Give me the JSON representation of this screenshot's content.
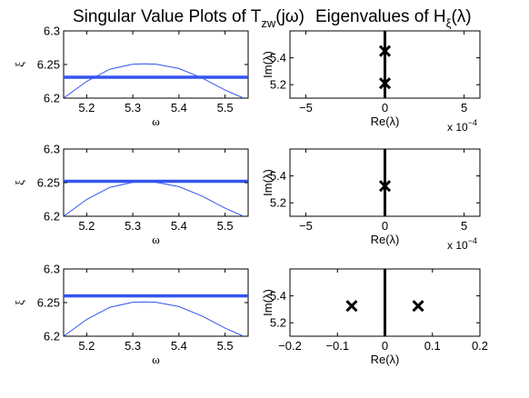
{
  "titles": {
    "left": {
      "main": "Singular Value Plots of T",
      "sub": "zw",
      "tail": "(jω)"
    },
    "right": {
      "main": "Eigenvalues of H",
      "sub": "ξ",
      "tail": "(λ)"
    }
  },
  "colors": {
    "curve": "#3355ee",
    "level": "#3355ee",
    "axis_line": "#000000",
    "marker": "#000000"
  },
  "chart_data": [
    {
      "type": "line",
      "panel": "singular-value-1",
      "xlabel": "ω",
      "ylabel": "ξ",
      "xlim": [
        5.15,
        5.55
      ],
      "ylim": [
        6.2,
        6.3
      ],
      "xticks": [
        5.2,
        5.3,
        5.4,
        5.5
      ],
      "xtick_labels": [
        "5.2",
        "5.3",
        "5.4",
        "5.5"
      ],
      "yticks": [
        6.2,
        6.25,
        6.3
      ],
      "ytick_labels": [
        "6.2",
        "6.25",
        "6.3"
      ],
      "curve": {
        "x": [
          5.15,
          5.2,
          5.25,
          5.3,
          5.325,
          5.35,
          5.4,
          5.45,
          5.5,
          5.54
        ],
        "y": [
          6.2,
          6.225,
          6.243,
          6.2505,
          6.251,
          6.2505,
          6.244,
          6.23,
          6.212,
          6.2
        ]
      },
      "level": 6.231
    },
    {
      "type": "scatter",
      "panel": "eigenvalues-1",
      "xlabel": "Re(λ)",
      "ylabel": "Im(λ)",
      "xlim": [
        -6,
        6
      ],
      "ylim": [
        5.1,
        5.6
      ],
      "xticks": [
        -5,
        0,
        5
      ],
      "xtick_labels": [
        "−5",
        "0",
        "5"
      ],
      "yticks": [
        5.2,
        5.4
      ],
      "ytick_labels": [
        "5.2",
        "5.4"
      ],
      "exponent": {
        "base": "x 10",
        "power": "−4"
      },
      "points": [
        {
          "x": 0,
          "y": 5.45
        },
        {
          "x": 0,
          "y": 5.21
        }
      ]
    },
    {
      "type": "line",
      "panel": "singular-value-2",
      "xlabel": "ω",
      "ylabel": "ξ",
      "xlim": [
        5.15,
        5.55
      ],
      "ylim": [
        6.2,
        6.3
      ],
      "xticks": [
        5.2,
        5.3,
        5.4,
        5.5
      ],
      "xtick_labels": [
        "5.2",
        "5.3",
        "5.4",
        "5.5"
      ],
      "yticks": [
        6.2,
        6.25,
        6.3
      ],
      "ytick_labels": [
        "6.2",
        "6.25",
        "6.3"
      ],
      "curve": {
        "x": [
          5.15,
          5.2,
          5.25,
          5.3,
          5.325,
          5.35,
          5.4,
          5.45,
          5.5,
          5.54
        ],
        "y": [
          6.2,
          6.225,
          6.243,
          6.2505,
          6.251,
          6.2505,
          6.244,
          6.23,
          6.212,
          6.2
        ]
      },
      "level": 6.252
    },
    {
      "type": "scatter",
      "panel": "eigenvalues-2",
      "xlabel": "Re(λ)",
      "ylabel": "Im(λ)",
      "xlim": [
        -6,
        6
      ],
      "ylim": [
        5.1,
        5.6
      ],
      "xticks": [
        -5,
        0,
        5
      ],
      "xtick_labels": [
        "−5",
        "0",
        "5"
      ],
      "yticks": [
        5.2,
        5.4
      ],
      "ytick_labels": [
        "5.2",
        "5.4"
      ],
      "exponent": {
        "base": "x 10",
        "power": "−4"
      },
      "points": [
        {
          "x": 0,
          "y": 5.325
        }
      ]
    },
    {
      "type": "line",
      "panel": "singular-value-3",
      "xlabel": "ω",
      "ylabel": "ξ",
      "xlim": [
        5.15,
        5.55
      ],
      "ylim": [
        6.2,
        6.3
      ],
      "xticks": [
        5.2,
        5.3,
        5.4,
        5.5
      ],
      "xtick_labels": [
        "5.2",
        "5.3",
        "5.4",
        "5.5"
      ],
      "yticks": [
        6.2,
        6.25,
        6.3
      ],
      "ytick_labels": [
        "6.2",
        "6.25",
        "6.3"
      ],
      "curve": {
        "x": [
          5.15,
          5.2,
          5.25,
          5.3,
          5.325,
          5.35,
          5.4,
          5.45,
          5.5,
          5.54
        ],
        "y": [
          6.2,
          6.225,
          6.243,
          6.2505,
          6.251,
          6.2505,
          6.244,
          6.23,
          6.212,
          6.2
        ]
      },
      "level": 6.26
    },
    {
      "type": "scatter",
      "panel": "eigenvalues-3",
      "xlabel": "Re(λ)",
      "ylabel": "Im(λ)",
      "xlim": [
        -0.2,
        0.2
      ],
      "ylim": [
        5.1,
        5.6
      ],
      "xticks": [
        -0.2,
        -0.1,
        0,
        0.1,
        0.2
      ],
      "xtick_labels": [
        "−0.2",
        "−0.1",
        "0",
        "0.1",
        "0.2"
      ],
      "yticks": [
        5.2,
        5.4
      ],
      "ytick_labels": [
        "5.2",
        "5.4"
      ],
      "points": [
        {
          "x": -0.07,
          "y": 5.325
        },
        {
          "x": 0.07,
          "y": 5.325
        }
      ]
    }
  ]
}
